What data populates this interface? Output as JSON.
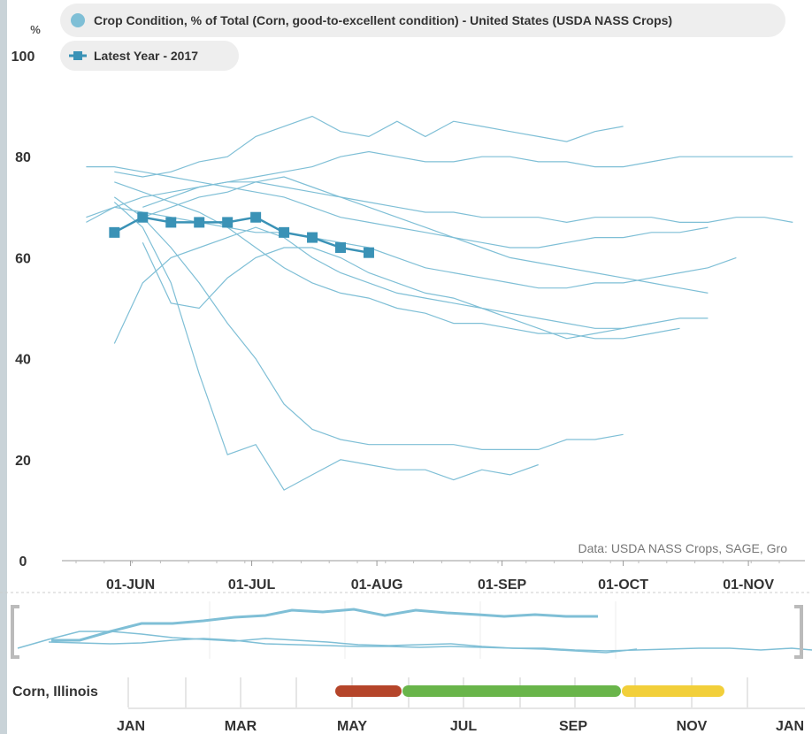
{
  "chart_data": {
    "type": "line",
    "y_label": "%",
    "source": "Data: USDA NASS Crops, SAGE, Gro",
    "x": [
      "21-MAY",
      "28-MAY",
      "04-JUN",
      "11-JUN",
      "18-JUN",
      "25-JUN",
      "02-JUL",
      "09-JUL",
      "16-JUL",
      "23-JUL",
      "30-JUL",
      "06-AUG",
      "13-AUG",
      "20-AUG",
      "27-AUG",
      "03-SEP",
      "10-SEP",
      "17-SEP",
      "24-SEP",
      "01-OCT",
      "08-OCT",
      "15-OCT",
      "22-OCT",
      "29-OCT",
      "05-NOV",
      "12-NOV"
    ],
    "xlim": [
      "15-MAY",
      "15-NOV"
    ],
    "xticks": [
      "01-JUN",
      "01-JUL",
      "01-AUG",
      "01-SEP",
      "01-OCT",
      "01-NOV"
    ],
    "ylim": [
      0,
      100
    ],
    "yticks": [
      0,
      20,
      40,
      60,
      80,
      100
    ],
    "grid": false,
    "series": [
      {
        "name": "Crop Condition, % of Total (Corn, good-to-excellent condition) - United States (USDA NASS Crops)",
        "color": "#7fbfd6",
        "values": [
          [
            null,
            71,
            66,
            55,
            37,
            21,
            23,
            14,
            17,
            20,
            19,
            18,
            18,
            16,
            18,
            17,
            19,
            null,
            null,
            null,
            null,
            null,
            null,
            null,
            null,
            null
          ],
          [
            null,
            72,
            68,
            62,
            55,
            47,
            40,
            31,
            26,
            24,
            23,
            23,
            23,
            23,
            22,
            22,
            22,
            24,
            24,
            25,
            null,
            null,
            null,
            null,
            null,
            null
          ],
          [
            null,
            77,
            76,
            77,
            79,
            80,
            84,
            86,
            88,
            85,
            84,
            87,
            84,
            87,
            86,
            85,
            84,
            83,
            85,
            86,
            null,
            null,
            null,
            null,
            null,
            null
          ],
          [
            78,
            78,
            77,
            76,
            75,
            74,
            73,
            72,
            70,
            68,
            67,
            66,
            65,
            64,
            63,
            62,
            62,
            63,
            64,
            64,
            65,
            65,
            66,
            null,
            null,
            null
          ],
          [
            null,
            65,
            68,
            70,
            72,
            73,
            75,
            76,
            74,
            72,
            70,
            68,
            66,
            64,
            62,
            60,
            59,
            58,
            57,
            56,
            55,
            54,
            53,
            null,
            null,
            null
          ],
          [
            null,
            43,
            55,
            60,
            62,
            64,
            66,
            64,
            60,
            57,
            55,
            53,
            52,
            51,
            50,
            48,
            46,
            44,
            45,
            46,
            47,
            null,
            null,
            null,
            null,
            null
          ],
          [
            null,
            null,
            70,
            72,
            74,
            75,
            76,
            77,
            78,
            80,
            81,
            80,
            79,
            79,
            80,
            80,
            79,
            79,
            78,
            78,
            79,
            80,
            80,
            80,
            80,
            80
          ],
          [
            null,
            null,
            63,
            51,
            50,
            56,
            60,
            62,
            62,
            60,
            57,
            55,
            53,
            52,
            50,
            49,
            48,
            47,
            46,
            46,
            47,
            48,
            48,
            null,
            null,
            null
          ],
          [
            68,
            70,
            69,
            68,
            67,
            66,
            65,
            65,
            64,
            63,
            62,
            60,
            58,
            57,
            56,
            55,
            54,
            54,
            55,
            55,
            56,
            57,
            58,
            60,
            null,
            null
          ],
          [
            null,
            75,
            73,
            71,
            69,
            66,
            62,
            58,
            55,
            53,
            52,
            50,
            49,
            47,
            47,
            46,
            45,
            45,
            44,
            44,
            45,
            46,
            null,
            null,
            null,
            null
          ],
          [
            67,
            70,
            72,
            73,
            74,
            75,
            75,
            74,
            73,
            72,
            71,
            70,
            69,
            69,
            68,
            68,
            68,
            67,
            68,
            68,
            68,
            67,
            67,
            68,
            68,
            67
          ]
        ]
      },
      {
        "name": "Latest Year - 2017",
        "color": "#3a92b6",
        "values": [
          null,
          65,
          68,
          67,
          67,
          67,
          68,
          65,
          64,
          62,
          61,
          null,
          null,
          null,
          null,
          null,
          null,
          null,
          null,
          null,
          null,
          null,
          null,
          null,
          null,
          null
        ]
      }
    ]
  },
  "crop_calendar": {
    "label": "Corn, Illinois",
    "months": [
      "JAN",
      "MAR",
      "MAY",
      "JUL",
      "SEP",
      "NOV",
      "JAN"
    ]
  }
}
